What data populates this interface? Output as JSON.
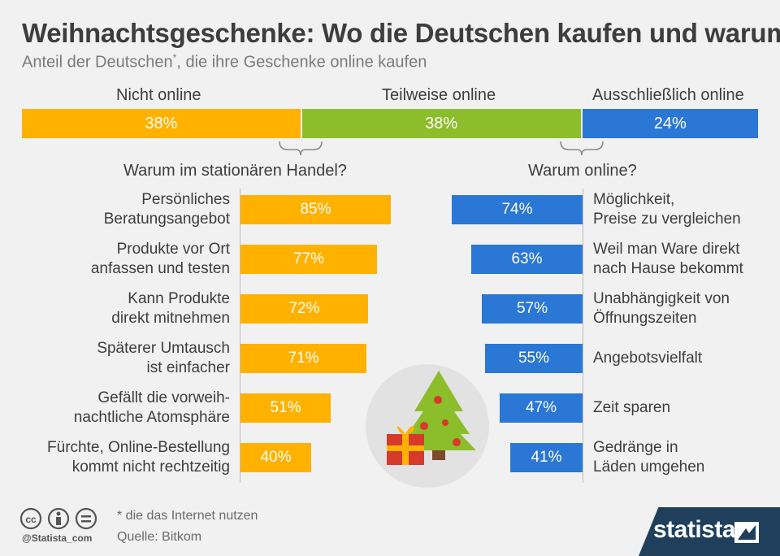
{
  "header": {
    "title": "Weihnachtsgeschenke: Wo die Deutschen kaufen und warum",
    "subtitle_main": "Anteil der Deutschen",
    "subtitle_sup": "*",
    "subtitle_rest": ", die ihre Geschenke online kaufen"
  },
  "colors": {
    "orange": "#ffb100",
    "green": "#8cbd2a",
    "blue": "#2a77d6"
  },
  "chart_data": [
    {
      "type": "bar",
      "stacked": true,
      "orientation": "horizontal",
      "categories": [
        "Nicht online",
        "Teilweise online",
        "Ausschließlich online"
      ],
      "values": [
        38,
        38,
        24
      ],
      "value_labels": [
        "38%",
        "38%",
        "24%"
      ],
      "colors": [
        "#ffb100",
        "#8cbd2a",
        "#2a77d6"
      ]
    },
    {
      "type": "bar",
      "orientation": "horizontal",
      "title": "Warum im stationären Handel?",
      "categories": [
        "Persönliches\nBeratungsangebot",
        "Produkte vor Ort\nanfassen und testen",
        "Kann Produkte\ndirekt mitnehmen",
        "Späterer Umtausch\nist einfacher",
        "Gefällt die vorweih-\nnachtliche Atomsphäre",
        "Fürchte, Online-Bestellung\nkommt nicht rechtzeitig"
      ],
      "values": [
        85,
        77,
        72,
        71,
        51,
        40
      ],
      "value_labels": [
        "85%",
        "77%",
        "72%",
        "71%",
        "51%",
        "40%"
      ],
      "color": "#ffb100"
    },
    {
      "type": "bar",
      "orientation": "horizontal",
      "direction": "leftward",
      "title": "Warum online?",
      "categories": [
        "Möglichkeit,\nPreise zu vergleichen",
        "Weil man Ware direkt\nnach Hause bekommt",
        "Unabhängigkeit von\nÖffnungszeiten",
        "Angebotsvielfalt",
        "Zeit sparen",
        "Gedränge in\nLäden umgehen"
      ],
      "values": [
        74,
        63,
        57,
        55,
        47,
        41
      ],
      "value_labels": [
        "74%",
        "63%",
        "57%",
        "55%",
        "47%",
        "41%"
      ],
      "color": "#2a77d6"
    }
  ],
  "icons": {
    "illustration": "christmas-tree-with-gift-icon",
    "license": [
      "creative-commons-icon",
      "attribution-icon",
      "no-derivatives-icon"
    ],
    "brand": "statista-logo-icon"
  },
  "footer": {
    "footnote": "* die das Internet nutzen",
    "source": "Quelle: Bitkom",
    "handle": "@Statista_com",
    "brand": "statista"
  }
}
